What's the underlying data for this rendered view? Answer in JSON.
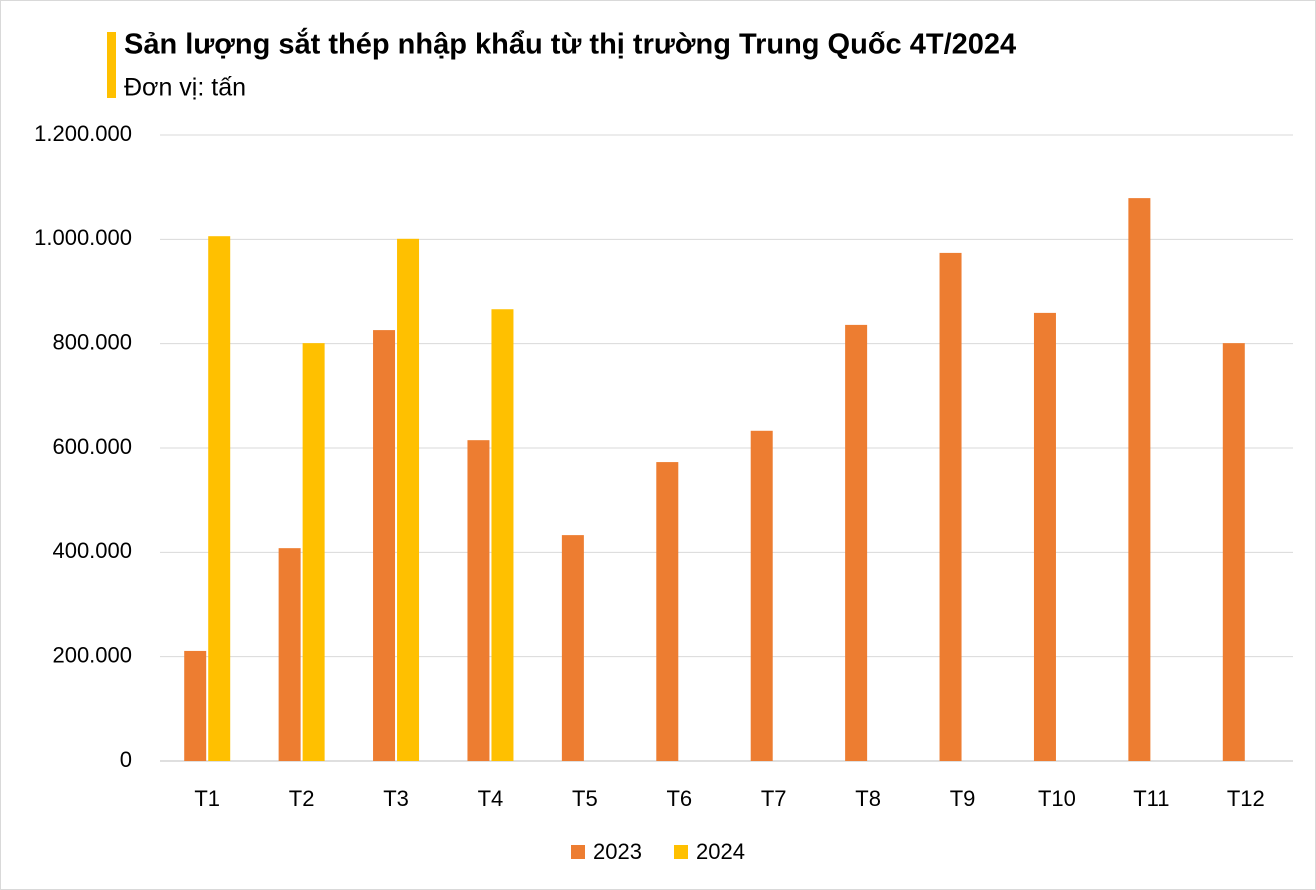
{
  "chart_data": {
    "type": "bar",
    "title": "Sản lượng sắt thép nhập khẩu từ thị trường Trung Quốc 4T/2024",
    "subtitle": "Đơn vị: tấn",
    "categories": [
      "T1",
      "T2",
      "T3",
      "T4",
      "T5",
      "T6",
      "T7",
      "T8",
      "T9",
      "T10",
      "T11",
      "T12"
    ],
    "series": [
      {
        "name": "2023",
        "color": "#ED7D31",
        "values": [
          211000,
          408000,
          826000,
          615000,
          433000,
          573000,
          633000,
          836000,
          974000,
          859000,
          1079000,
          801000
        ]
      },
      {
        "name": "2024",
        "color": "#FFC000",
        "values": [
          1006000,
          801000,
          1001000,
          866000,
          null,
          null,
          null,
          null,
          null,
          null,
          null,
          null
        ]
      }
    ],
    "ylim": [
      0,
      1200000
    ],
    "yticks": [
      0,
      {
        "value": 200000,
        "label": "200.000"
      },
      {
        "value": 400000,
        "label": "400.000"
      },
      {
        "value": 600000,
        "label": "600.000"
      },
      {
        "value": 800000,
        "label": "800.000"
      },
      {
        "value": 1000000,
        "label": "1.000.000"
      },
      {
        "value": 1200000,
        "label": "1.200.000"
      }
    ],
    "grid": true,
    "legend": "bottom"
  }
}
